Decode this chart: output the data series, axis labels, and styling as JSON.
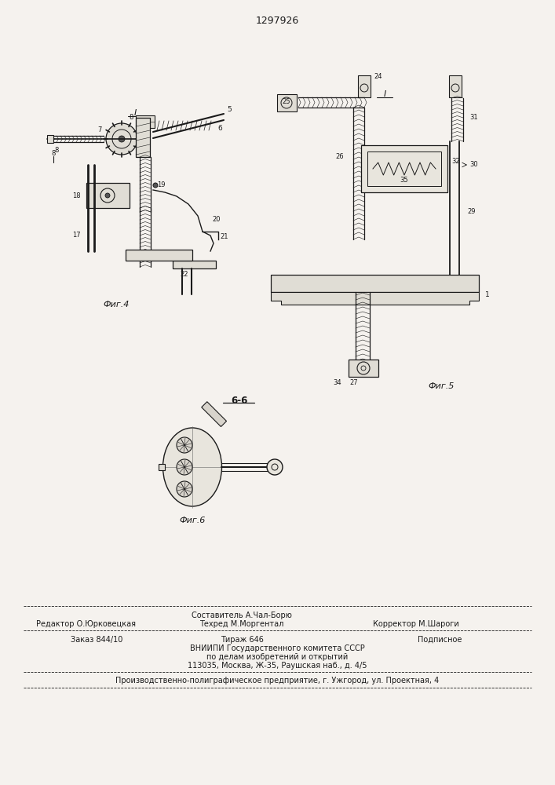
{
  "title_number": "1297926",
  "bg_color": "#f5f2ee",
  "lc": "#1a1a1a",
  "footer_sestavitel": "Составитель А.Чал-Борю",
  "footer_tehred": "Техред М.Моргентал",
  "footer_redaktor": "Редактор О.Юрковецкая",
  "footer_korrektor": "Корректор М.Шароги",
  "footer_zakaz": "Заказ 844/10",
  "footer_tirazh": "Тираж 646",
  "footer_podpisnoe": "Подписное",
  "footer_vniip1": "ВНИИПИ Государственного комитета СССР",
  "footer_vniip2": "по делам изобретений и открытий",
  "footer_vniip3": "113035, Москва, Ж-35, Раушская наб., д. 4/5",
  "footer_last": "Производственно-полиграфическое предприятие, г. Ужгород, ул. Проектная, 4"
}
